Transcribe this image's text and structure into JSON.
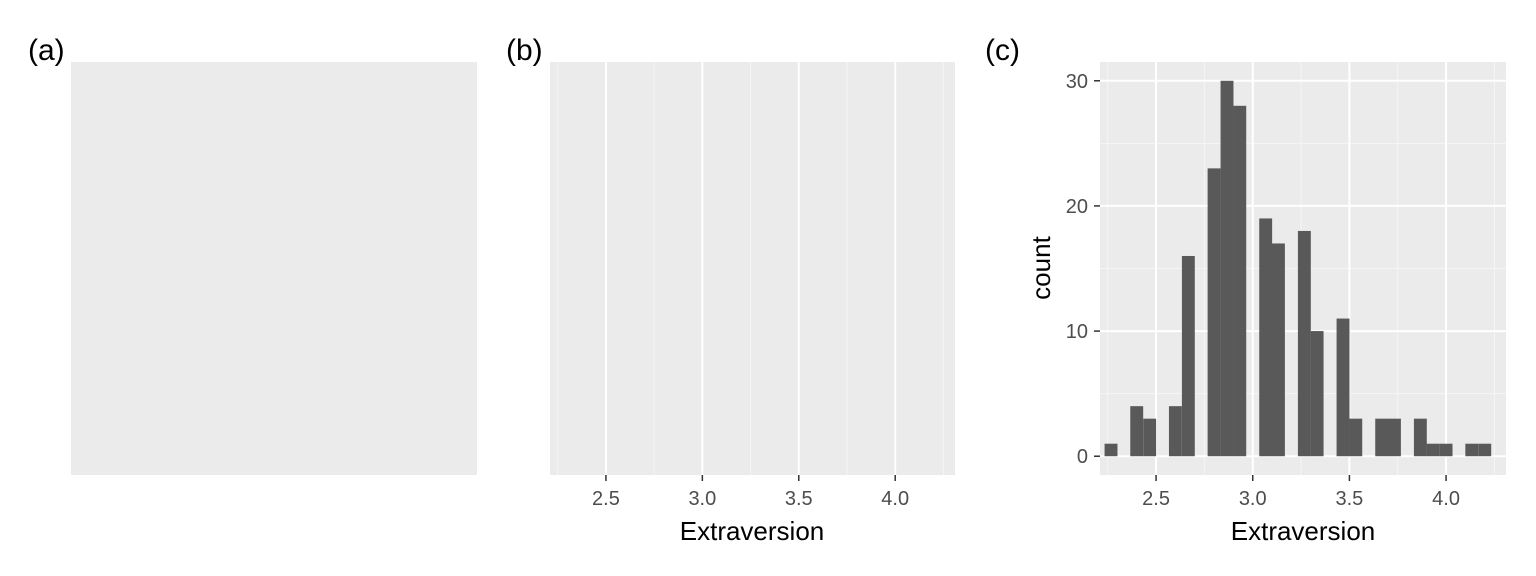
{
  "colors": {
    "panel_background": "#ebebeb",
    "grid_major": "#ffffff",
    "grid_minor": "#f5f5f5",
    "bar_fill": "#595959",
    "tick_mark": "#333333",
    "tick_text": "#4d4d4d"
  },
  "panels": [
    {
      "label": "(a)"
    },
    {
      "label": "(b)"
    },
    {
      "label": "(c)"
    }
  ],
  "chart_data": [
    {
      "type": "bar",
      "panel": "(a)",
      "note_empty": true
    },
    {
      "type": "bar",
      "panel": "(b)",
      "xlabel": "Extraversion",
      "xlim": [
        2.21,
        4.31
      ],
      "x_ticks": [
        "2.5",
        "3.0",
        "3.5",
        "4.0"
      ],
      "grid": "vertical only"
    },
    {
      "type": "bar",
      "panel": "(c)",
      "xlabel": "Extraversion",
      "ylabel": "count",
      "xlim": [
        2.21,
        4.31
      ],
      "ylim": [
        -1.5,
        31.5
      ],
      "x_ticks": [
        "2.5",
        "3.0",
        "3.5",
        "4.0"
      ],
      "y_ticks": [
        "0",
        "10",
        "20",
        "30"
      ],
      "grid": true,
      "bin_width": 0.0667,
      "bins": [
        {
          "x": 2.267,
          "count": 1
        },
        {
          "x": 2.333,
          "count": 0
        },
        {
          "x": 2.4,
          "count": 4
        },
        {
          "x": 2.467,
          "count": 3
        },
        {
          "x": 2.533,
          "count": 0
        },
        {
          "x": 2.6,
          "count": 4
        },
        {
          "x": 2.667,
          "count": 16
        },
        {
          "x": 2.733,
          "count": 0
        },
        {
          "x": 2.8,
          "count": 23
        },
        {
          "x": 2.867,
          "count": 30
        },
        {
          "x": 2.933,
          "count": 28
        },
        {
          "x": 3.0,
          "count": 0
        },
        {
          "x": 3.067,
          "count": 19
        },
        {
          "x": 3.133,
          "count": 17
        },
        {
          "x": 3.2,
          "count": 0
        },
        {
          "x": 3.267,
          "count": 18
        },
        {
          "x": 3.333,
          "count": 10
        },
        {
          "x": 3.4,
          "count": 0
        },
        {
          "x": 3.467,
          "count": 11
        },
        {
          "x": 3.533,
          "count": 3
        },
        {
          "x": 3.6,
          "count": 0
        },
        {
          "x": 3.667,
          "count": 3
        },
        {
          "x": 3.733,
          "count": 3
        },
        {
          "x": 3.8,
          "count": 0
        },
        {
          "x": 3.867,
          "count": 3
        },
        {
          "x": 3.933,
          "count": 1
        },
        {
          "x": 4.0,
          "count": 1
        },
        {
          "x": 4.067,
          "count": 0
        },
        {
          "x": 4.133,
          "count": 1
        },
        {
          "x": 4.2,
          "count": 1
        }
      ]
    }
  ]
}
